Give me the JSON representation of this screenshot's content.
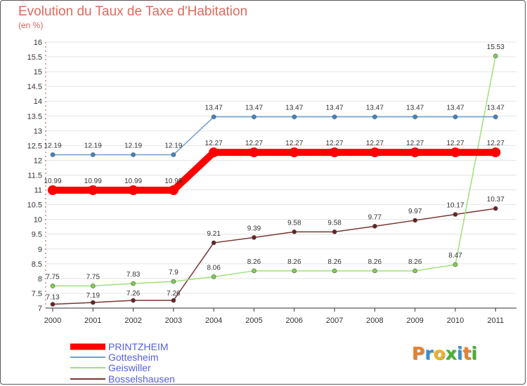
{
  "chart_data": {
    "type": "line",
    "title": "Evolution du Taux de Taxe d'Habitation",
    "subtitle": "(en %)",
    "xlabel": "",
    "ylabel": "",
    "ylim": [
      7,
      16
    ],
    "yticks": [
      7,
      7.5,
      8,
      8.5,
      9,
      9.5,
      10,
      10.5,
      11,
      11.5,
      12,
      12.5,
      13,
      13.5,
      14,
      14.5,
      15,
      15.5,
      16
    ],
    "categories": [
      "2000",
      "2001",
      "2002",
      "2003",
      "2004",
      "2005",
      "2006",
      "2007",
      "2008",
      "2009",
      "2010",
      "2011"
    ],
    "grid": "horizontal",
    "legend_position": "bottom-left",
    "series": [
      {
        "name": "PRINTZHEIM",
        "color": "#ff0000",
        "emphasis": true,
        "values": [
          10.99,
          10.99,
          10.99,
          10.99,
          12.27,
          12.27,
          12.27,
          12.27,
          12.27,
          12.27,
          12.27,
          12.27
        ],
        "labels": [
          "10.99",
          "10.99",
          "10.99",
          "10.99",
          "12.27",
          "12.27",
          "12.27",
          "12.27",
          "12.27",
          "12.27",
          "12.27",
          "12.27"
        ]
      },
      {
        "name": "Gottesheim",
        "color": "#6f9fce",
        "marker_color": "#3a86c8",
        "values": [
          12.19,
          12.19,
          12.19,
          12.19,
          13.47,
          13.47,
          13.47,
          13.47,
          13.47,
          13.47,
          13.47,
          13.47
        ],
        "labels": [
          "12.19",
          "12.19",
          "12.19",
          "12.19",
          "13.47",
          "13.47",
          "13.47",
          "13.47",
          "13.47",
          "13.47",
          "13.47",
          "13.47"
        ]
      },
      {
        "name": "Geiswiller",
        "color": "#9fe07a",
        "marker_color": "#7fcf4a",
        "values": [
          7.75,
          7.75,
          7.83,
          7.9,
          8.06,
          8.26,
          8.26,
          8.26,
          8.26,
          8.26,
          8.47,
          15.53
        ],
        "labels": [
          "7.75",
          "7.75",
          "7.83",
          "7.9",
          "8.06",
          "8.26",
          "8.26",
          "8.26",
          "8.26",
          "8.26",
          "8.47",
          "15.53"
        ]
      },
      {
        "name": "Bosselshausen",
        "color": "#7a3434",
        "marker_color": "#6b2020",
        "values": [
          7.13,
          7.19,
          7.26,
          7.26,
          9.21,
          9.39,
          9.58,
          9.58,
          9.77,
          9.97,
          10.17,
          10.37
        ],
        "labels": [
          "7.13",
          "7.19",
          "7.26",
          "7.26",
          "9.21",
          "9.39",
          "9.58",
          "9.58",
          "9.77",
          "9.97",
          "10.17",
          "10.37"
        ]
      }
    ]
  },
  "brand": {
    "letters": [
      {
        "char": "P",
        "color": "#e8802a"
      },
      {
        "char": "r",
        "color": "#3a8fd0"
      },
      {
        "char": "o",
        "color": "#f0b020"
      },
      {
        "char": "x",
        "color": "#4ab030"
      },
      {
        "char": "i",
        "color": "#3a8fd0"
      },
      {
        "char": "t",
        "color": "#e8802a"
      },
      {
        "char": "i",
        "color": "#4ab030"
      }
    ]
  }
}
